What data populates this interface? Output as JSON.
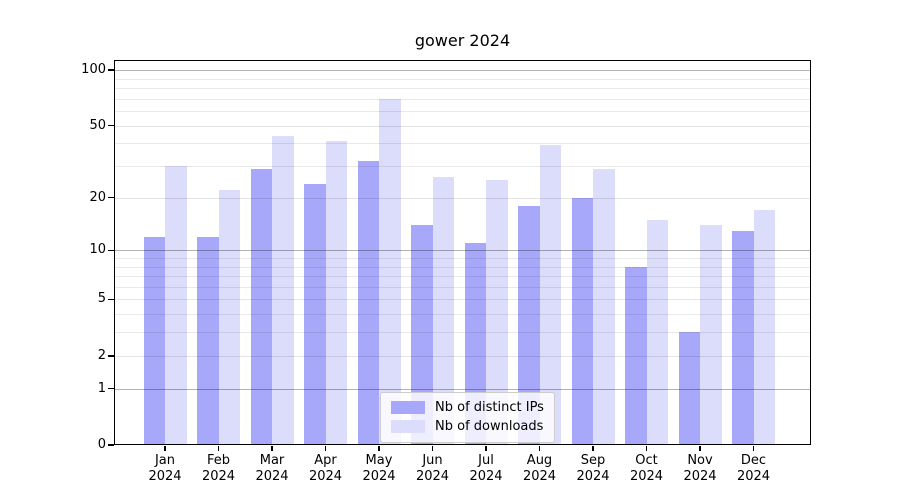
{
  "chart_data": {
    "type": "bar",
    "title": "gower 2024",
    "categories": [
      "Jan",
      "Feb",
      "Mar",
      "Apr",
      "May",
      "Jun",
      "Jul",
      "Aug",
      "Sep",
      "Oct",
      "Nov",
      "Dec"
    ],
    "category_year": "2024",
    "series": [
      {
        "name": "Nb of distinct IPs",
        "color": "#a8a8fa",
        "values": [
          12,
          12,
          29,
          24,
          32,
          14,
          11,
          18,
          20,
          8,
          3,
          13
        ]
      },
      {
        "name": "Nb of downloads",
        "color": "#dcdcfb",
        "values": [
          30,
          22,
          44,
          41,
          70,
          26,
          25,
          39,
          29,
          15,
          14,
          17
        ]
      }
    ],
    "yscale": "log1p",
    "ylim": [
      0,
      114
    ],
    "yticks": [
      0,
      1,
      2,
      5,
      10,
      20,
      50,
      100
    ],
    "yticks_major_emphasis": [
      1,
      10,
      100
    ],
    "yticks_minor": [
      3,
      4,
      6,
      7,
      8,
      9,
      30,
      40,
      60,
      70,
      80,
      90
    ],
    "grid": true,
    "legend_position": "lower center",
    "frame_color": "#000000"
  }
}
